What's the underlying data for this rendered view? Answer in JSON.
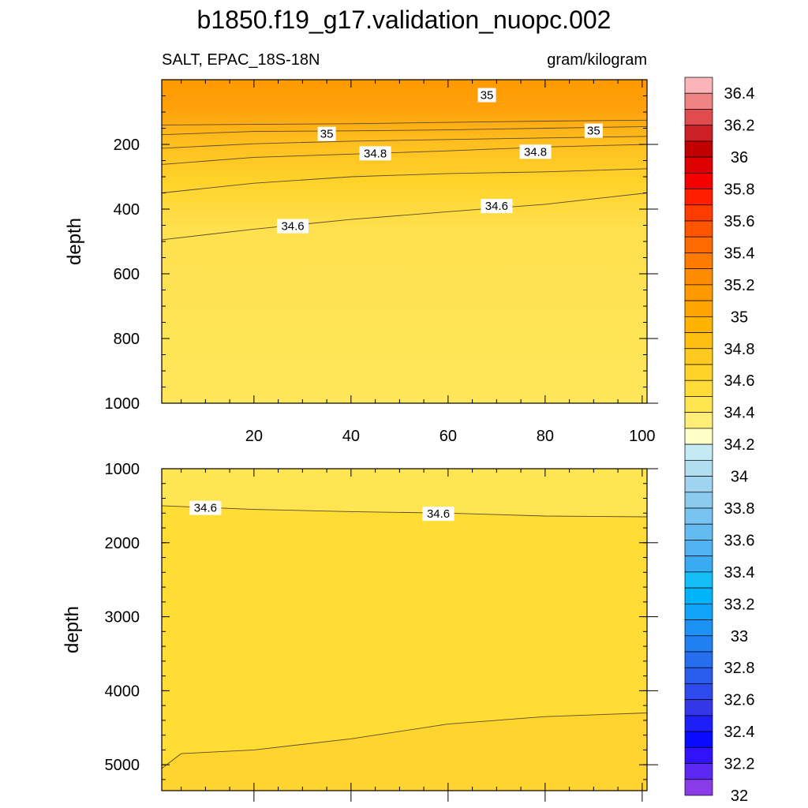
{
  "figure": {
    "title": "b1850.f19_g17.validation_nuopc.002",
    "left_string": "SALT, EPAC_18S-18N",
    "right_string": "gram/kilogram"
  },
  "chart_data": [
    {
      "type": "contour",
      "panel": "upper",
      "xlabel": "",
      "ylabel": "depth",
      "xlim": [
        1,
        101
      ],
      "ylim": [
        1000,
        0
      ],
      "xticks": [
        20,
        40,
        60,
        80,
        100
      ],
      "yticks": [
        200,
        400,
        600,
        800,
        1000
      ],
      "contours": [
        {
          "level": 34.6,
          "points": [
            [
              1,
              495
            ],
            [
              20,
              462
            ],
            [
              40,
              432
            ],
            [
              60,
              408
            ],
            [
              80,
              385
            ],
            [
              101,
              350
            ]
          ]
        },
        {
          "level": 34.7,
          "points": [
            [
              1,
              350
            ],
            [
              20,
              320
            ],
            [
              40,
              300
            ],
            [
              60,
              290
            ],
            [
              80,
              285
            ],
            [
              101,
              275
            ]
          ]
        },
        {
          "level": 34.8,
          "points": [
            [
              1,
              262
            ],
            [
              20,
              240
            ],
            [
              40,
              230
            ],
            [
              60,
              220
            ],
            [
              80,
              208
            ],
            [
              101,
              200
            ]
          ]
        },
        {
          "level": 34.9,
          "points": [
            [
              1,
              212
            ],
            [
              20,
              198
            ],
            [
              40,
              190
            ],
            [
              60,
              185
            ],
            [
              80,
              180
            ],
            [
              101,
              175
            ]
          ]
        },
        {
          "level": 35.0,
          "points": [
            [
              1,
              170
            ],
            [
              20,
              160
            ],
            [
              40,
              158
            ],
            [
              60,
              155
            ],
            [
              80,
              150
            ],
            [
              101,
              145
            ]
          ]
        },
        {
          "level": 35.1,
          "points": [
            [
              1,
              140
            ],
            [
              20,
              138
            ],
            [
              40,
              136
            ],
            [
              60,
              132
            ],
            [
              80,
              128
            ],
            [
              101,
              125
            ]
          ]
        }
      ],
      "contour_labels": [
        {
          "text": "35",
          "x": 68,
          "y": 50
        },
        {
          "text": "35",
          "x": 35,
          "y": 170
        },
        {
          "text": "35",
          "x": 90,
          "y": 160
        },
        {
          "text": "34.8",
          "x": 45,
          "y": 230
        },
        {
          "text": "34.8",
          "x": 78,
          "y": 225
        },
        {
          "text": "34.6",
          "x": 28,
          "y": 455
        },
        {
          "text": "34.6",
          "x": 70,
          "y": 393
        }
      ]
    },
    {
      "type": "contour",
      "panel": "lower",
      "xlabel": "",
      "ylabel": "depth",
      "xlim": [
        1,
        101
      ],
      "ylim": [
        5350,
        1000
      ],
      "yticks": [
        1000,
        2000,
        3000,
        4000,
        5000
      ],
      "contours": [
        {
          "level": 34.6,
          "points": [
            [
              1,
              1500
            ],
            [
              20,
              1550
            ],
            [
              40,
              1580
            ],
            [
              60,
              1600
            ],
            [
              80,
              1640
            ],
            [
              101,
              1650
            ]
          ]
        },
        {
          "level": 34.7,
          "points": [
            [
              1,
              5050
            ],
            [
              5,
              4850
            ],
            [
              20,
              4800
            ],
            [
              40,
              4650
            ],
            [
              60,
              4450
            ],
            [
              80,
              4350
            ],
            [
              101,
              4300
            ]
          ]
        }
      ],
      "contour_labels": [
        {
          "text": "34.6",
          "x": 10,
          "y": 1540
        },
        {
          "text": "34.6",
          "x": 58,
          "y": 1620
        }
      ]
    }
  ],
  "colorbar": {
    "labels": [
      "36.4",
      "36.2",
      "36",
      "35.8",
      "35.6",
      "35.4",
      "35.2",
      "35",
      "34.8",
      "34.6",
      "34.4",
      "34.2",
      "34",
      "33.8",
      "33.6",
      "33.4",
      "33.2",
      "33",
      "32.8",
      "32.6",
      "32.4",
      "32.2",
      "32"
    ],
    "colors": [
      "#fbb4b9",
      "#ee8483",
      "#e04c4d",
      "#cc1f26",
      "#c00000",
      "#dc0000",
      "#f50000",
      "#ff1e00",
      "#ff3c00",
      "#ff5500",
      "#ff6a00",
      "#ff7b00",
      "#ff8c00",
      "#ff9900",
      "#ffa500",
      "#ffb300",
      "#ffbf10",
      "#ffca20",
      "#ffd32a",
      "#ffdc3a",
      "#ffe650",
      "#ffee78",
      "#ffffc8",
      "#c6e9f6",
      "#b2def2",
      "#9fd3ef",
      "#8ccbee",
      "#78c3ef",
      "#64bbf0",
      "#50b2f2",
      "#3aaaf3",
      "#14bef7",
      "#00b4f9",
      "#10a4f8",
      "#1c92f5",
      "#2080f2",
      "#256ef0",
      "#2a5cee",
      "#2f4aec",
      "#3436ea",
      "#1e1ef8",
      "#0a0aff",
      "#3212fa",
      "#5a28f0",
      "#8a3be8"
    ]
  }
}
